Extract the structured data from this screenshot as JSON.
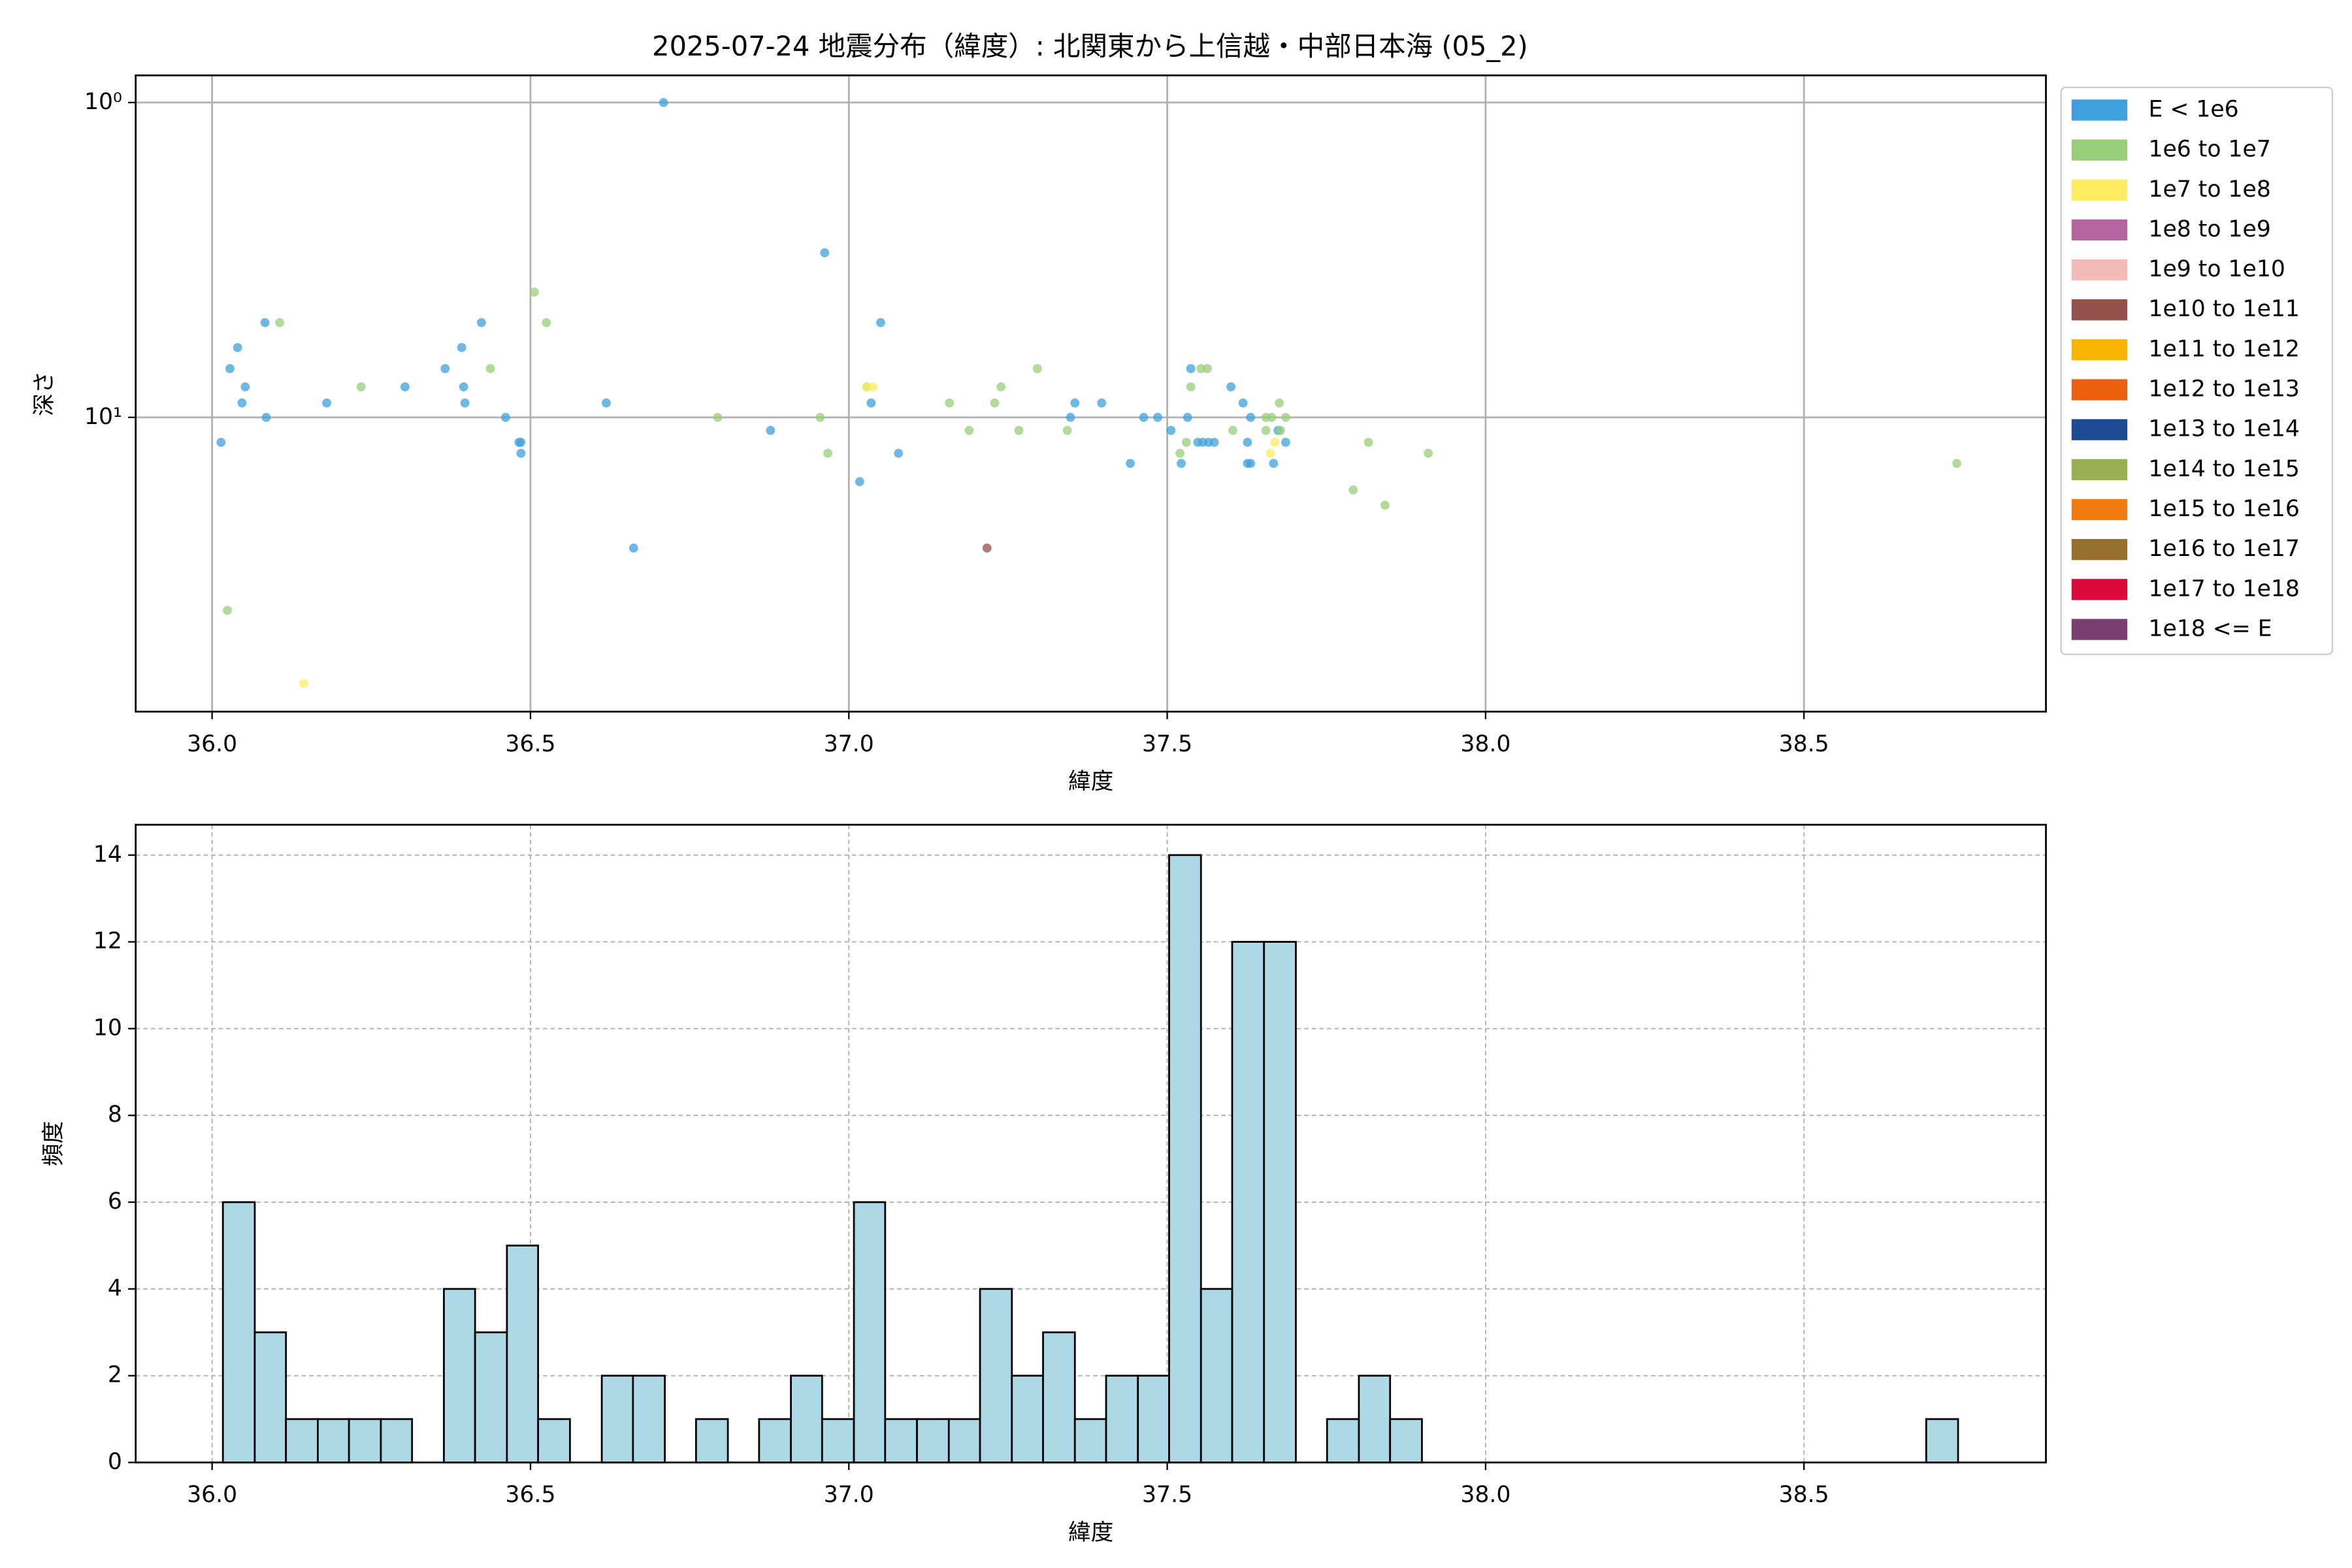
{
  "chart_data": [
    {
      "type": "scatter",
      "title": "2025-07-24 地震分布（緯度）: 北関東から上信越・中部日本海 (05_2)",
      "xlabel": "緯度",
      "ylabel": "深さ",
      "xlim": [
        35.88,
        38.88
      ],
      "xticks": [
        {
          "value": 36,
          "label": "36.0"
        },
        36.5,
        {
          "value": 37,
          "label": "37.0"
        },
        37.5,
        {
          "value": 38,
          "label": "38.0"
        },
        38.5
      ],
      "ylim": [
        0.82,
        86
      ],
      "yticks": [
        {
          "value": 1,
          "label": "10⁰"
        },
        {
          "value": 10,
          "label": "10¹"
        }
      ],
      "ylog": true,
      "y_inverted": true,
      "grid": true,
      "legend": "outside right",
      "series": [
        {
          "name": "E < 1e6",
          "color": "#3ea0dc",
          "x": [
            36.014,
            36.028,
            36.04,
            36.047,
            36.052,
            36.083,
            36.085,
            36.18,
            36.303,
            36.366,
            36.392,
            36.395,
            36.397,
            36.423,
            36.461,
            36.482,
            36.485,
            36.485,
            36.619,
            36.662,
            36.709,
            36.877,
            36.962,
            37.017,
            37.035,
            37.05,
            37.078,
            37.348,
            37.355,
            37.397,
            37.442,
            37.463,
            37.485,
            37.506,
            37.522,
            37.532,
            37.548,
            37.556,
            37.565,
            37.574,
            37.6,
            37.619,
            37.631,
            37.626,
            37.626,
            37.631,
            37.667,
            37.674,
            37.686,
            37.537
          ],
          "values": [
            12,
            7,
            6,
            9,
            8,
            5,
            10,
            9,
            8,
            7,
            6,
            8,
            9,
            5,
            10,
            12,
            12,
            13,
            9,
            26,
            1,
            11,
            3,
            16,
            9,
            5,
            13,
            10,
            9,
            9,
            14,
            10,
            10,
            11,
            14,
            10,
            12,
            12,
            12,
            12,
            8,
            9,
            10,
            12,
            14,
            14,
            14,
            11,
            12,
            7
          ]
        },
        {
          "name": "1e6 to 1e7",
          "color": "#98ce78",
          "x": [
            36.024,
            36.106,
            36.234,
            36.437,
            36.506,
            36.525,
            36.794,
            36.955,
            36.967,
            37.028,
            37.158,
            37.189,
            37.229,
            37.239,
            37.267,
            37.296,
            37.343,
            37.52,
            37.53,
            37.537,
            37.553,
            37.563,
            37.603,
            37.655,
            37.664,
            37.676,
            37.686,
            37.678,
            37.792,
            37.816,
            37.842,
            37.91,
            38.74,
            37.655
          ],
          "values": [
            41,
            5,
            8,
            7,
            4,
            5,
            10,
            10,
            13,
            8,
            9,
            11,
            9,
            8,
            11,
            7,
            11,
            13,
            12,
            8,
            7,
            7,
            11,
            11,
            10,
            9,
            10,
            11,
            17,
            12,
            19,
            13,
            14,
            10
          ]
        },
        {
          "name": "1e7 to 1e8",
          "color": "#fdec60",
          "x": [
            36.144,
            37.028,
            37.038,
            37.662,
            37.669
          ],
          "values": [
            70,
            8,
            8,
            13,
            12
          ]
        },
        {
          "name": "1e8 to 1e9",
          "color": "#b565a0",
          "x": [],
          "values": []
        },
        {
          "name": "1e9 to 1e10",
          "color": "#f4bcb6",
          "x": [],
          "values": []
        },
        {
          "name": "1e10 to 1e11",
          "color": "#94504a",
          "x": [
            37.217
          ],
          "values": [
            26
          ]
        },
        {
          "name": "1e11 to 1e12",
          "color": "#f8b500",
          "x": [],
          "values": []
        },
        {
          "name": "1e12 to 1e13",
          "color": "#ea6010",
          "x": [],
          "values": []
        },
        {
          "name": "1e13 to 1e14",
          "color": "#1c4b94",
          "x": [],
          "values": []
        },
        {
          "name": "1e14 to 1e15",
          "color": "#9aae52",
          "x": [],
          "values": []
        },
        {
          "name": "1e15 to 1e16",
          "color": "#f07b10",
          "x": [],
          "values": []
        },
        {
          "name": "1e16 to 1e17",
          "color": "#977030",
          "x": [],
          "values": []
        },
        {
          "name": "1e17 to 1e18",
          "color": "#dc0a3a",
          "x": [],
          "values": []
        },
        {
          "name": "1e18 <= E",
          "color": "#7a3f70",
          "x": [],
          "values": []
        }
      ]
    },
    {
      "type": "histogram",
      "xlabel": "緯度",
      "ylabel": "頻度",
      "color": "#add8e6",
      "edgecolor": "#000000",
      "grid": true,
      "xlim": [
        35.88,
        38.88
      ],
      "xticks": [
        {
          "value": 36,
          "label": "36.0"
        },
        36.5,
        {
          "value": 37,
          "label": "37.0"
        },
        37.5,
        {
          "value": 38,
          "label": "38.0"
        },
        38.5
      ],
      "ylim": [
        0,
        14.7
      ],
      "yticks": [
        0,
        2,
        4,
        6,
        8,
        10,
        12,
        14
      ],
      "bins": [
        36.017,
        36.067,
        36.116,
        36.166,
        36.215,
        36.265,
        36.314,
        36.364,
        36.413,
        36.463,
        36.512,
        36.562,
        36.612,
        36.661,
        36.711,
        36.76,
        36.81,
        36.859,
        36.909,
        36.958,
        37.008,
        37.057,
        37.107,
        37.157,
        37.206,
        37.256,
        37.305,
        37.355,
        37.404,
        37.454,
        37.503,
        37.553,
        37.602,
        37.652,
        37.702,
        37.751,
        37.801,
        37.85,
        37.9,
        37.949,
        37.999,
        38.048,
        38.098,
        38.147,
        38.197,
        38.247,
        38.296,
        38.346,
        38.395,
        38.445,
        38.494,
        38.544,
        38.593,
        38.643,
        38.692,
        38.742
      ],
      "values": [
        6,
        3,
        1,
        1,
        1,
        1,
        0,
        4,
        3,
        5,
        1,
        0,
        2,
        2,
        0,
        1,
        0,
        1,
        2,
        1,
        6,
        1,
        1,
        1,
        4,
        2,
        3,
        1,
        2,
        2,
        14,
        4,
        12,
        12,
        0,
        1,
        2,
        1,
        0,
        0,
        0,
        0,
        0,
        0,
        0,
        0,
        0,
        0,
        0,
        0,
        0,
        0,
        0,
        0,
        1
      ]
    }
  ]
}
